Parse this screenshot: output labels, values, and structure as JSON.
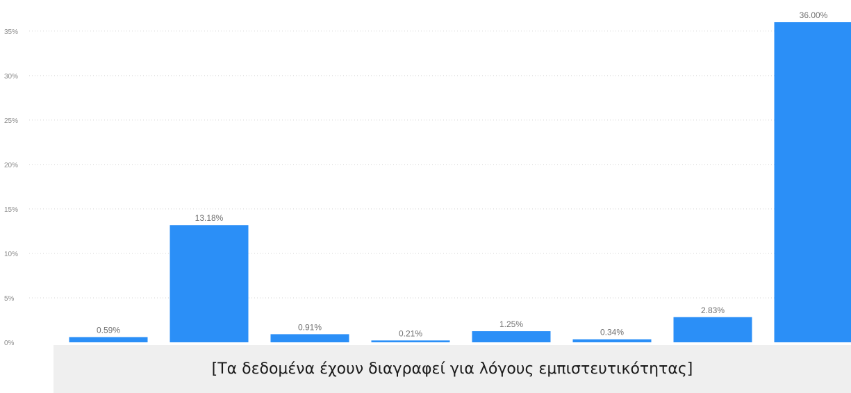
{
  "chart_data": {
    "type": "bar",
    "categories": [
      "",
      "",
      "",
      "",
      "",
      "",
      "",
      ""
    ],
    "values": [
      0.59,
      13.18,
      0.91,
      0.21,
      1.25,
      0.34,
      2.83,
      36.0
    ],
    "data_labels": [
      "0.59%",
      "13.18%",
      "0.91%",
      "0.21%",
      "1.25%",
      "0.34%",
      "2.83%",
      "36.00%"
    ],
    "yticks": [
      0,
      5,
      10,
      15,
      20,
      25,
      30,
      35
    ],
    "ytick_labels": [
      "0%",
      "5%",
      "10%",
      "15%",
      "20%",
      "25%",
      "30%",
      "35%"
    ],
    "ylim": [
      0,
      36
    ],
    "grid": true,
    "bar_color": "#2b8ff7",
    "title": "",
    "xlabel": "",
    "ylabel": ""
  },
  "redaction": {
    "text": "[Τα δεδομένα έχουν διαγραφεί για λόγους εμπιστευτικότητας]",
    "background": "#efefef"
  }
}
